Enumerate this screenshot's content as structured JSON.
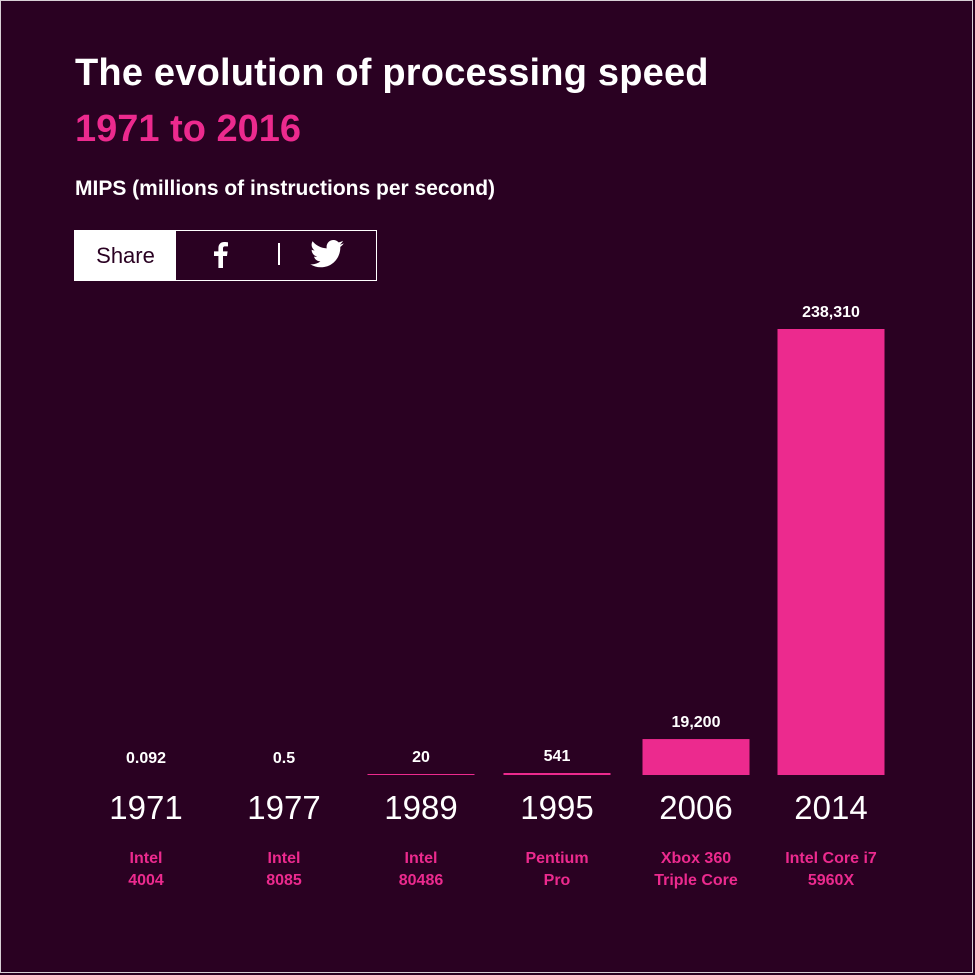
{
  "title": "The evolution of processing speed",
  "subtitle": "1971 to 2016",
  "unit_label": "MIPS (millions of instructions per second)",
  "share": {
    "label": "Share",
    "icons": [
      "facebook-icon",
      "twitter-icon"
    ]
  },
  "colors": {
    "background": "#2a0122",
    "accent": "#ec2a8e",
    "text": "#ffffff"
  },
  "chart_data": {
    "type": "bar",
    "title": "The evolution of processing speed",
    "subtitle": "1971 to 2016",
    "ylabel": "MIPS (millions of instructions per second)",
    "xlabel": "",
    "categories": [
      "1971",
      "1977",
      "1989",
      "1995",
      "2006",
      "2014"
    ],
    "processors": [
      [
        "Intel",
        "4004"
      ],
      [
        "Intel",
        "8085"
      ],
      [
        "Intel",
        "80486"
      ],
      [
        "Pentium",
        "Pro"
      ],
      [
        "Xbox 360",
        "Triple Core"
      ],
      [
        "Intel Core i7",
        "5960X"
      ]
    ],
    "values": [
      0.092,
      0.5,
      20,
      541,
      19200,
      238310
    ],
    "value_labels": [
      "0.092",
      "0.5",
      "20",
      "541",
      "19,200",
      "238,310"
    ],
    "ylim": [
      0,
      238310
    ],
    "grid": false,
    "legend": "none"
  }
}
